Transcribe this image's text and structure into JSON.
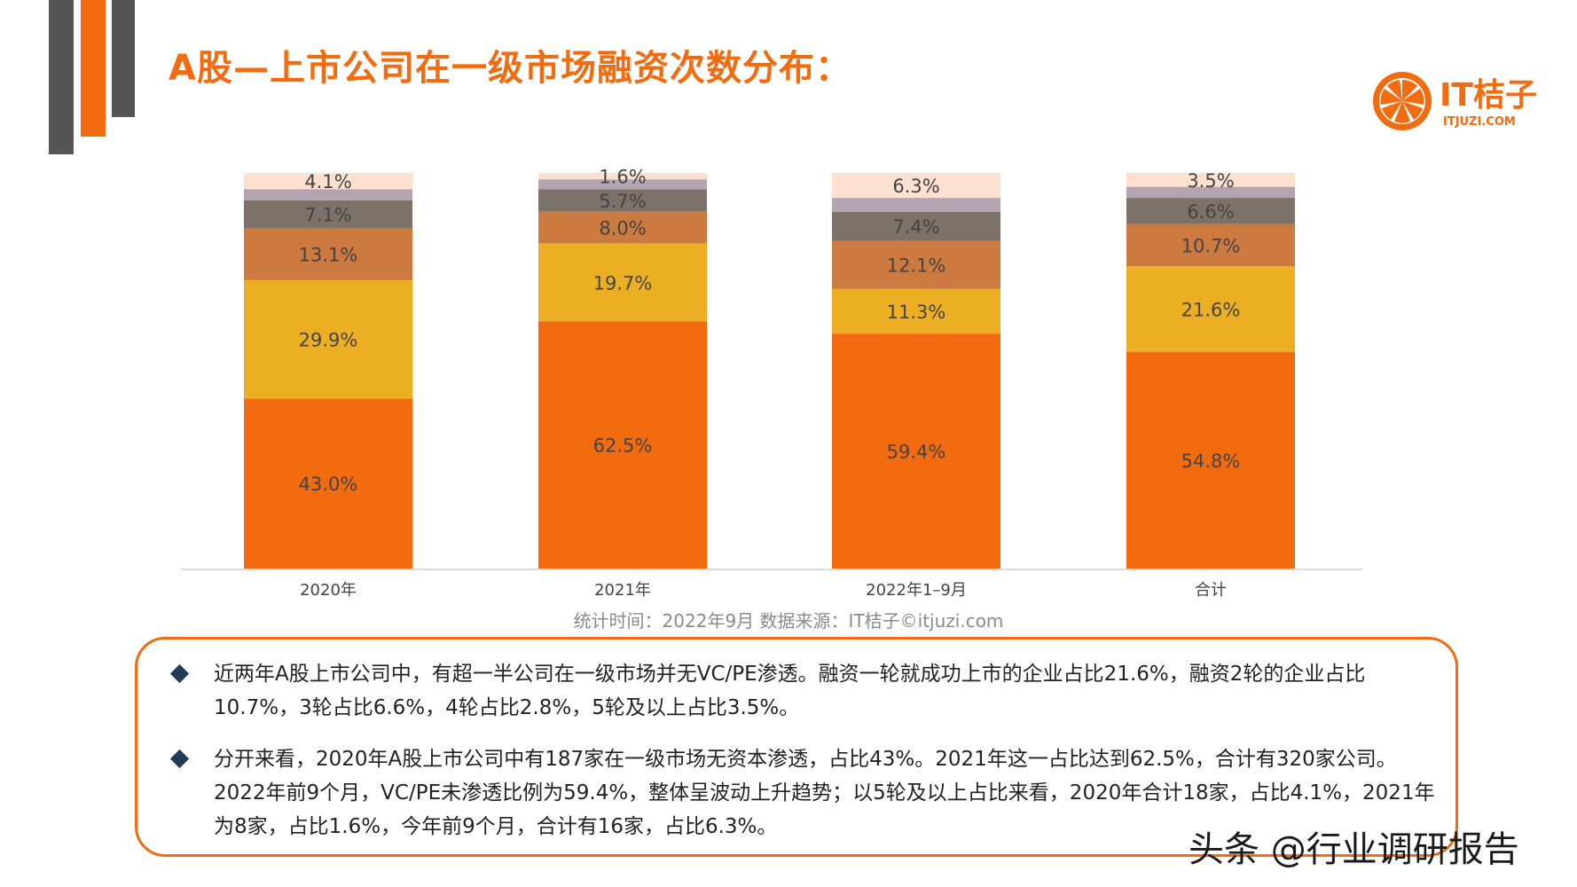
{
  "title": "A股—上市公司在一级市场融资次数分布：",
  "logo": {
    "name": "IT桔子",
    "site": "ITJUZI.COM"
  },
  "source": "统计时间：2022年9月   数据来源：IT桔子©itjuzi.com",
  "notes": [
    "近两年A股上市公司中，有超一半公司在一级市场并无VC/PE渗透。融资一轮就成功上市的企业占比21.6%，融资2轮的企业占比10.7%，3轮占比6.6%，4轮占比2.8%，5轮及以上占比3.5%。",
    "分开来看，2020年A股上市公司中有187家在一级市场无资本渗透，占比43%。2021年这一占比达到62.5%，合计有320家公司。2022年前9个月，VC/PE未渗透比例为59.4%，整体呈波动上升趋势；以5轮及以上占比来看，2020年合计18家，占比4.1%，2021年为8家，占比1.6%，今年前9个月，合计有16家，占比6.3%。"
  ],
  "watermark": "头条 @行业调研报告",
  "colors": {
    "accent": "#f26b0f",
    "series": [
      "#f26b0f",
      "#ecae23",
      "#cc7a3f",
      "#7d7269",
      "#b3a4b0",
      "#fde0cf"
    ]
  },
  "chart_data": {
    "type": "bar",
    "stacked": true,
    "categories": [
      "2020年",
      "2021年",
      "2022年1–9月",
      "合计"
    ],
    "series": [
      {
        "values": [
          43.0,
          62.5,
          59.4,
          54.8
        ],
        "labels": [
          "43.0%",
          "62.5%",
          "59.4%",
          "54.8%"
        ]
      },
      {
        "values": [
          29.9,
          19.7,
          11.3,
          21.6
        ],
        "labels": [
          "29.9%",
          "19.7%",
          "11.3%",
          "21.6%"
        ]
      },
      {
        "values": [
          13.1,
          8.0,
          12.1,
          10.7
        ],
        "labels": [
          "13.1%",
          "8.0%",
          "12.1%",
          "10.7%"
        ]
      },
      {
        "values": [
          7.1,
          5.7,
          7.4,
          6.6
        ],
        "labels": [
          "7.1%",
          "5.7%",
          "7.4%",
          "6.6%"
        ]
      },
      {
        "values": [
          2.8,
          2.5,
          3.5,
          2.8
        ],
        "labels": [
          "",
          "",
          "",
          ""
        ]
      },
      {
        "values": [
          4.1,
          1.6,
          6.3,
          3.5
        ],
        "labels": [
          "4.1%",
          "1.6%",
          "6.3%",
          "3.5%"
        ]
      }
    ],
    "ylim": [
      0,
      100
    ],
    "legend": "none"
  }
}
